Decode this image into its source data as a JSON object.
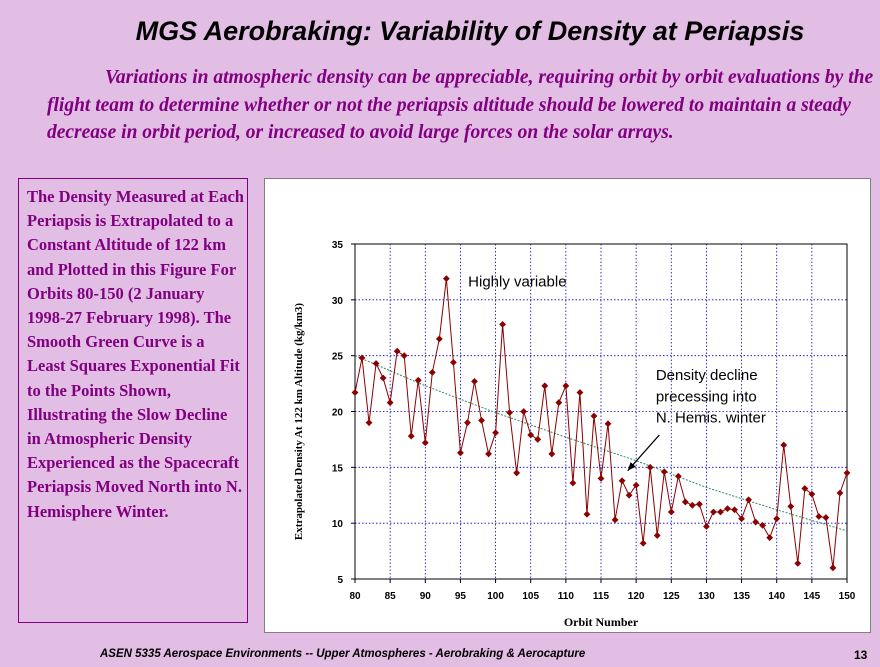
{
  "slide": {
    "title": "MGS Aerobraking:  Variability of Density at Periapsis",
    "intro": "Variations in atmospheric density can be appreciable, requiring orbit by orbit evaluations by the flight team to determine whether or not the periapsis altitude should be lowered to maintain a steady decrease in orbit period, or increased to avoid large forces on the solar arrays.",
    "caption": "The Density Measured at Each Periapsis is Extrapolated to a Constant Altitude of 122 km and Plotted in this Figure For Orbits 80-150 (2 January 1998-27 February 1998). The Smooth Green Curve is a Least Squares Exponential Fit to the Points Shown, Illustrating the Slow Decline in Atmospheric Density Experienced as the Spacecraft Periapsis Moved North into N. Hemisphere Winter.",
    "footer": "ASEN 5335 Aerospace Environments -- Upper Atmospheres - Aerobraking & Aerocapture",
    "page_number": "13"
  },
  "colors": {
    "background": "#e2bde4",
    "text_accent": "#800080",
    "series": "#8b0000",
    "fit": "#2e8b57",
    "grid": "#0000cc"
  },
  "chart_data": {
    "type": "line",
    "xlabel": "Orbit Number",
    "ylabel": "Extrapolated Density At 122 km Altitude (kg/km3)",
    "xlim": [
      80,
      150
    ],
    "ylim": [
      5,
      35
    ],
    "xticks": [
      80,
      85,
      90,
      95,
      100,
      105,
      110,
      115,
      120,
      125,
      130,
      135,
      140,
      145,
      150
    ],
    "yticks": [
      5,
      10,
      15,
      20,
      25,
      30,
      35
    ],
    "grid": true,
    "series": [
      {
        "marker": "diamond",
        "x": [
          80,
          81,
          82,
          83,
          84,
          85,
          86,
          87,
          88,
          89,
          90,
          91,
          92,
          93,
          94,
          95,
          96,
          97,
          98,
          99,
          100,
          101,
          102,
          103,
          104,
          105,
          106,
          107,
          108,
          109,
          110,
          111,
          112,
          113,
          114,
          115,
          116,
          117,
          118,
          119,
          120,
          121,
          122,
          123,
          124,
          125,
          126,
          127,
          128,
          129,
          130,
          131,
          132,
          133,
          134,
          135,
          136,
          137,
          138,
          139,
          140,
          141,
          142,
          143,
          144,
          145,
          146,
          147,
          148,
          149,
          150
        ],
        "y": [
          21.7,
          24.8,
          19.0,
          24.3,
          23.0,
          20.8,
          25.4,
          25.0,
          17.8,
          22.8,
          17.2,
          23.5,
          26.5,
          31.9,
          24.4,
          16.3,
          19.0,
          22.7,
          19.2,
          16.2,
          18.1,
          27.8,
          19.9,
          14.5,
          20.0,
          17.9,
          17.5,
          22.3,
          16.2,
          20.8,
          22.3,
          13.6,
          21.7,
          10.8,
          19.6,
          14.0,
          18.9,
          10.3,
          13.8,
          12.5,
          13.4,
          8.2,
          15.0,
          8.9,
          14.6,
          11.0,
          14.2,
          11.9,
          11.6,
          11.7,
          9.7,
          11.0,
          11.0,
          11.3,
          11.2,
          10.4,
          12.1,
          10.1,
          9.8,
          8.7,
          10.4,
          17.0,
          11.5,
          6.4,
          13.1,
          12.6,
          10.6,
          10.5,
          6.0,
          12.7,
          14.5
        ]
      }
    ],
    "fit": {
      "x": [
        80,
        90,
        100,
        110,
        120,
        130,
        140,
        150
      ],
      "y": [
        25.0,
        22.3,
        19.9,
        17.7,
        15.6,
        13.2,
        11.2,
        9.3
      ]
    },
    "annotations": [
      {
        "text": "Highly variable",
        "x": 96.1,
        "y": 31.2
      },
      {
        "text": "Density decline",
        "x": 122.8,
        "y": 22.8
      },
      {
        "text": "precessing into",
        "x": 122.8,
        "y": 20.9
      },
      {
        "text": "N. Hemis. winter",
        "x": 122.8,
        "y": 19.0
      }
    ],
    "arrow": {
      "from": [
        123.3,
        17.9
      ],
      "to": [
        118.8,
        14.7
      ]
    }
  }
}
